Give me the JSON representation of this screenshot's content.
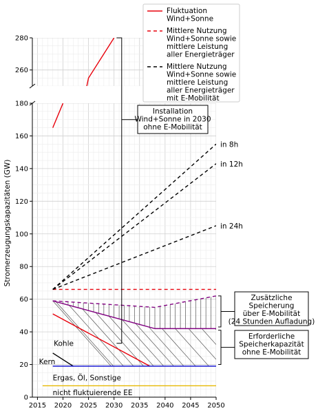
{
  "chart_data": {
    "type": "line",
    "ylabel": "Stromerzeugungskapazitäten (GW)",
    "xlim": [
      2014,
      2050
    ],
    "ylim_lower": [
      0,
      180
    ],
    "ylim_upper": [
      250,
      280
    ],
    "axis_break": true,
    "grid": true,
    "legend_position": "top-right",
    "x_ticks": [
      2015,
      2020,
      2025,
      2030,
      2035,
      2040,
      2045,
      2050
    ],
    "y_ticks_lower": [
      0,
      20,
      40,
      60,
      80,
      100,
      120,
      140,
      160,
      180
    ],
    "y_ticks_upper": [
      260,
      280
    ],
    "colors": {
      "fluctuation": "#e8000b",
      "mean_all": "#e8000b",
      "mean_emob": "#000000",
      "purple": "#800080",
      "blue": "#0000cc",
      "yellow": "#e6b800",
      "black": "#000000",
      "hatch": "#555555"
    },
    "legend": [
      {
        "label": "Fluktuation Wind+Sonne",
        "style": "solid",
        "color": "#e8000b"
      },
      {
        "label": "Mittlere Nutzung Wind+Sonne sowie mittlere Leistung aller Energieträger",
        "style": "dashed",
        "color": "#e8000b"
      },
      {
        "label": "Mittlere Nutzung Wind+Sonne sowie mittlere Leistung aller Energieträger mit E-Mobilität",
        "style": "dashed",
        "color": "#000000"
      }
    ],
    "legend_lines": [
      [
        "Fluktuation",
        "Wind+Sonne"
      ],
      [
        "Mittlere Nutzung",
        "Wind+Sonne sowie",
        "mittlere Leistung",
        "aller Energieträger"
      ],
      [
        "Mittlere Nutzung",
        "Wind+Sonne sowie",
        "mittlere Leistung",
        "aller Energieträger",
        "mit E-Mobilität"
      ]
    ],
    "series": [
      {
        "name": "Fluktuation Wind+Sonne",
        "x": [
          2018,
          2020,
          2025,
          2030
        ],
        "y": [
          165,
          180,
          255,
          280
        ],
        "color": "#e8000b",
        "dash": ""
      },
      {
        "name": "Mittlere Nutzung Wind+Sonne sowie mittlere Leistung aller Energieträger",
        "x": [
          2018,
          2050
        ],
        "y": [
          66,
          66
        ],
        "color": "#e8000b",
        "dash": "5,4"
      },
      {
        "name": "in 8h",
        "x": [
          2018,
          2050
        ],
        "y": [
          66,
          155
        ],
        "color": "#000000",
        "dash": "5,4"
      },
      {
        "name": "in 12h",
        "x": [
          2018,
          2050
        ],
        "y": [
          66,
          143
        ],
        "color": "#000000",
        "dash": "5,4"
      },
      {
        "name": "in 24h",
        "x": [
          2018,
          2050
        ],
        "y": [
          66,
          105
        ],
        "color": "#000000",
        "dash": "5,4"
      },
      {
        "name": "Zusätzliche Speicherung",
        "x": [
          2018,
          2038,
          2050
        ],
        "y": [
          59,
          55,
          62
        ],
        "color": "#800080",
        "dash": "5,4"
      },
      {
        "name": "Erforderliche Speicherkapazität",
        "x": [
          2018,
          2038,
          2050
        ],
        "y": [
          59,
          42,
          42
        ],
        "color": "#800080",
        "dash": ""
      },
      {
        "name": "Kohle",
        "x": [
          2018,
          2037
        ],
        "y": [
          51,
          19
        ],
        "color": "#e8000b",
        "dash": ""
      },
      {
        "name": "Kern",
        "x": [
          2018,
          2022
        ],
        "y": [
          27,
          19
        ],
        "color": "#000000",
        "dash": ""
      },
      {
        "name": "Ergas, Öl, Sonstige",
        "x": [
          2018,
          2050
        ],
        "y": [
          19,
          19
        ],
        "color": "#0000cc",
        "dash": ""
      },
      {
        "name": "nicht fluktuierende EE",
        "x": [
          2016,
          2050
        ],
        "y": [
          7,
          7
        ],
        "color": "#e6b800",
        "dash": ""
      }
    ],
    "end_labels": [
      {
        "text": "in 8h",
        "x": 2050,
        "y": 155
      },
      {
        "text": "in 12h",
        "x": 2050,
        "y": 143
      },
      {
        "text": "in 24h",
        "x": 2050,
        "y": 105
      }
    ],
    "text_labels": [
      {
        "text": "Kohle",
        "x": 2018.2,
        "y": 33
      },
      {
        "text": "Kern",
        "x": 2015.3,
        "y": 22
      },
      {
        "text": "Ergas, Öl, Sonstige",
        "x": 2018,
        "y": 12
      },
      {
        "text": "nicht fluktuierende EE",
        "x": 2018,
        "y": 3
      }
    ],
    "annotations": [
      {
        "lines": [
          "Installation",
          "Wind+Sonne in 2030",
          "ohne E-Mobilität"
        ]
      },
      {
        "lines": [
          "Zusätzliche",
          "Speicherung",
          "über E-Mobilität",
          "(24 Stunden Aufladung)"
        ]
      },
      {
        "lines": [
          "Erforderliche",
          "Speicherkapazität",
          "ohne E-Mobilität"
        ]
      }
    ]
  }
}
